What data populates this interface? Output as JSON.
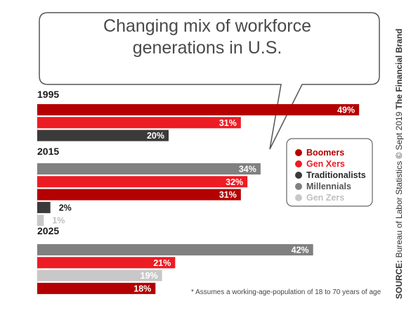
{
  "title_lines": [
    "Changing mix of workforce",
    "generations in U.S."
  ],
  "footnote": "* Assumes a working-age-population of 18 to 70 years of age",
  "credit": {
    "source_label": "SOURCE:",
    "source_text": "Bureau of Labor Statistics",
    "copyright": "© Sept 2019",
    "brand": "The Financial Brand"
  },
  "colors": {
    "Boomers": "#b30000",
    "Gen Xers": "#ed1c24",
    "Traditionalists": "#3a3a3a",
    "Millennials": "#808080",
    "Gen Zers": "#c8c8c8"
  },
  "legend": [
    {
      "name": "Boomers",
      "text_color": "#b30000"
    },
    {
      "name": "Gen Xers",
      "text_color": "#ed1c24"
    },
    {
      "name": "Traditionalists",
      "text_color": "#2a2a2a"
    },
    {
      "name": "Millennials",
      "text_color": "#555555"
    },
    {
      "name": "Gen Zers",
      "text_color": "#c0c0c0"
    }
  ],
  "chart_data": {
    "type": "bar",
    "orientation": "horizontal",
    "unit": "%",
    "xlim": [
      0,
      60
    ],
    "groups": [
      {
        "label": "1995",
        "bars": [
          {
            "series": "Boomers",
            "value": 49,
            "label": "49%"
          },
          {
            "series": "Gen Xers",
            "value": 31,
            "label": "31%"
          },
          {
            "series": "Traditionalists",
            "value": 20,
            "label": "20%"
          }
        ]
      },
      {
        "label": "2015",
        "bars": [
          {
            "series": "Millennials",
            "value": 34,
            "label": "34%"
          },
          {
            "series": "Gen Xers",
            "value": 32,
            "label": "32%"
          },
          {
            "series": "Boomers",
            "value": 31,
            "label": "31%"
          },
          {
            "series": "Traditionalists",
            "value": 2,
            "label": "2%"
          },
          {
            "series": "Gen Zers",
            "value": 1,
            "label": "1%"
          }
        ]
      },
      {
        "label": "2025",
        "bars": [
          {
            "series": "Millennials",
            "value": 42,
            "label": "42%"
          },
          {
            "series": "Gen Xers",
            "value": 21,
            "label": "21%"
          },
          {
            "series": "Gen Zers",
            "value": 19,
            "label": "19%"
          },
          {
            "series": "Boomers",
            "value": 18,
            "label": "18%"
          }
        ]
      }
    ]
  }
}
